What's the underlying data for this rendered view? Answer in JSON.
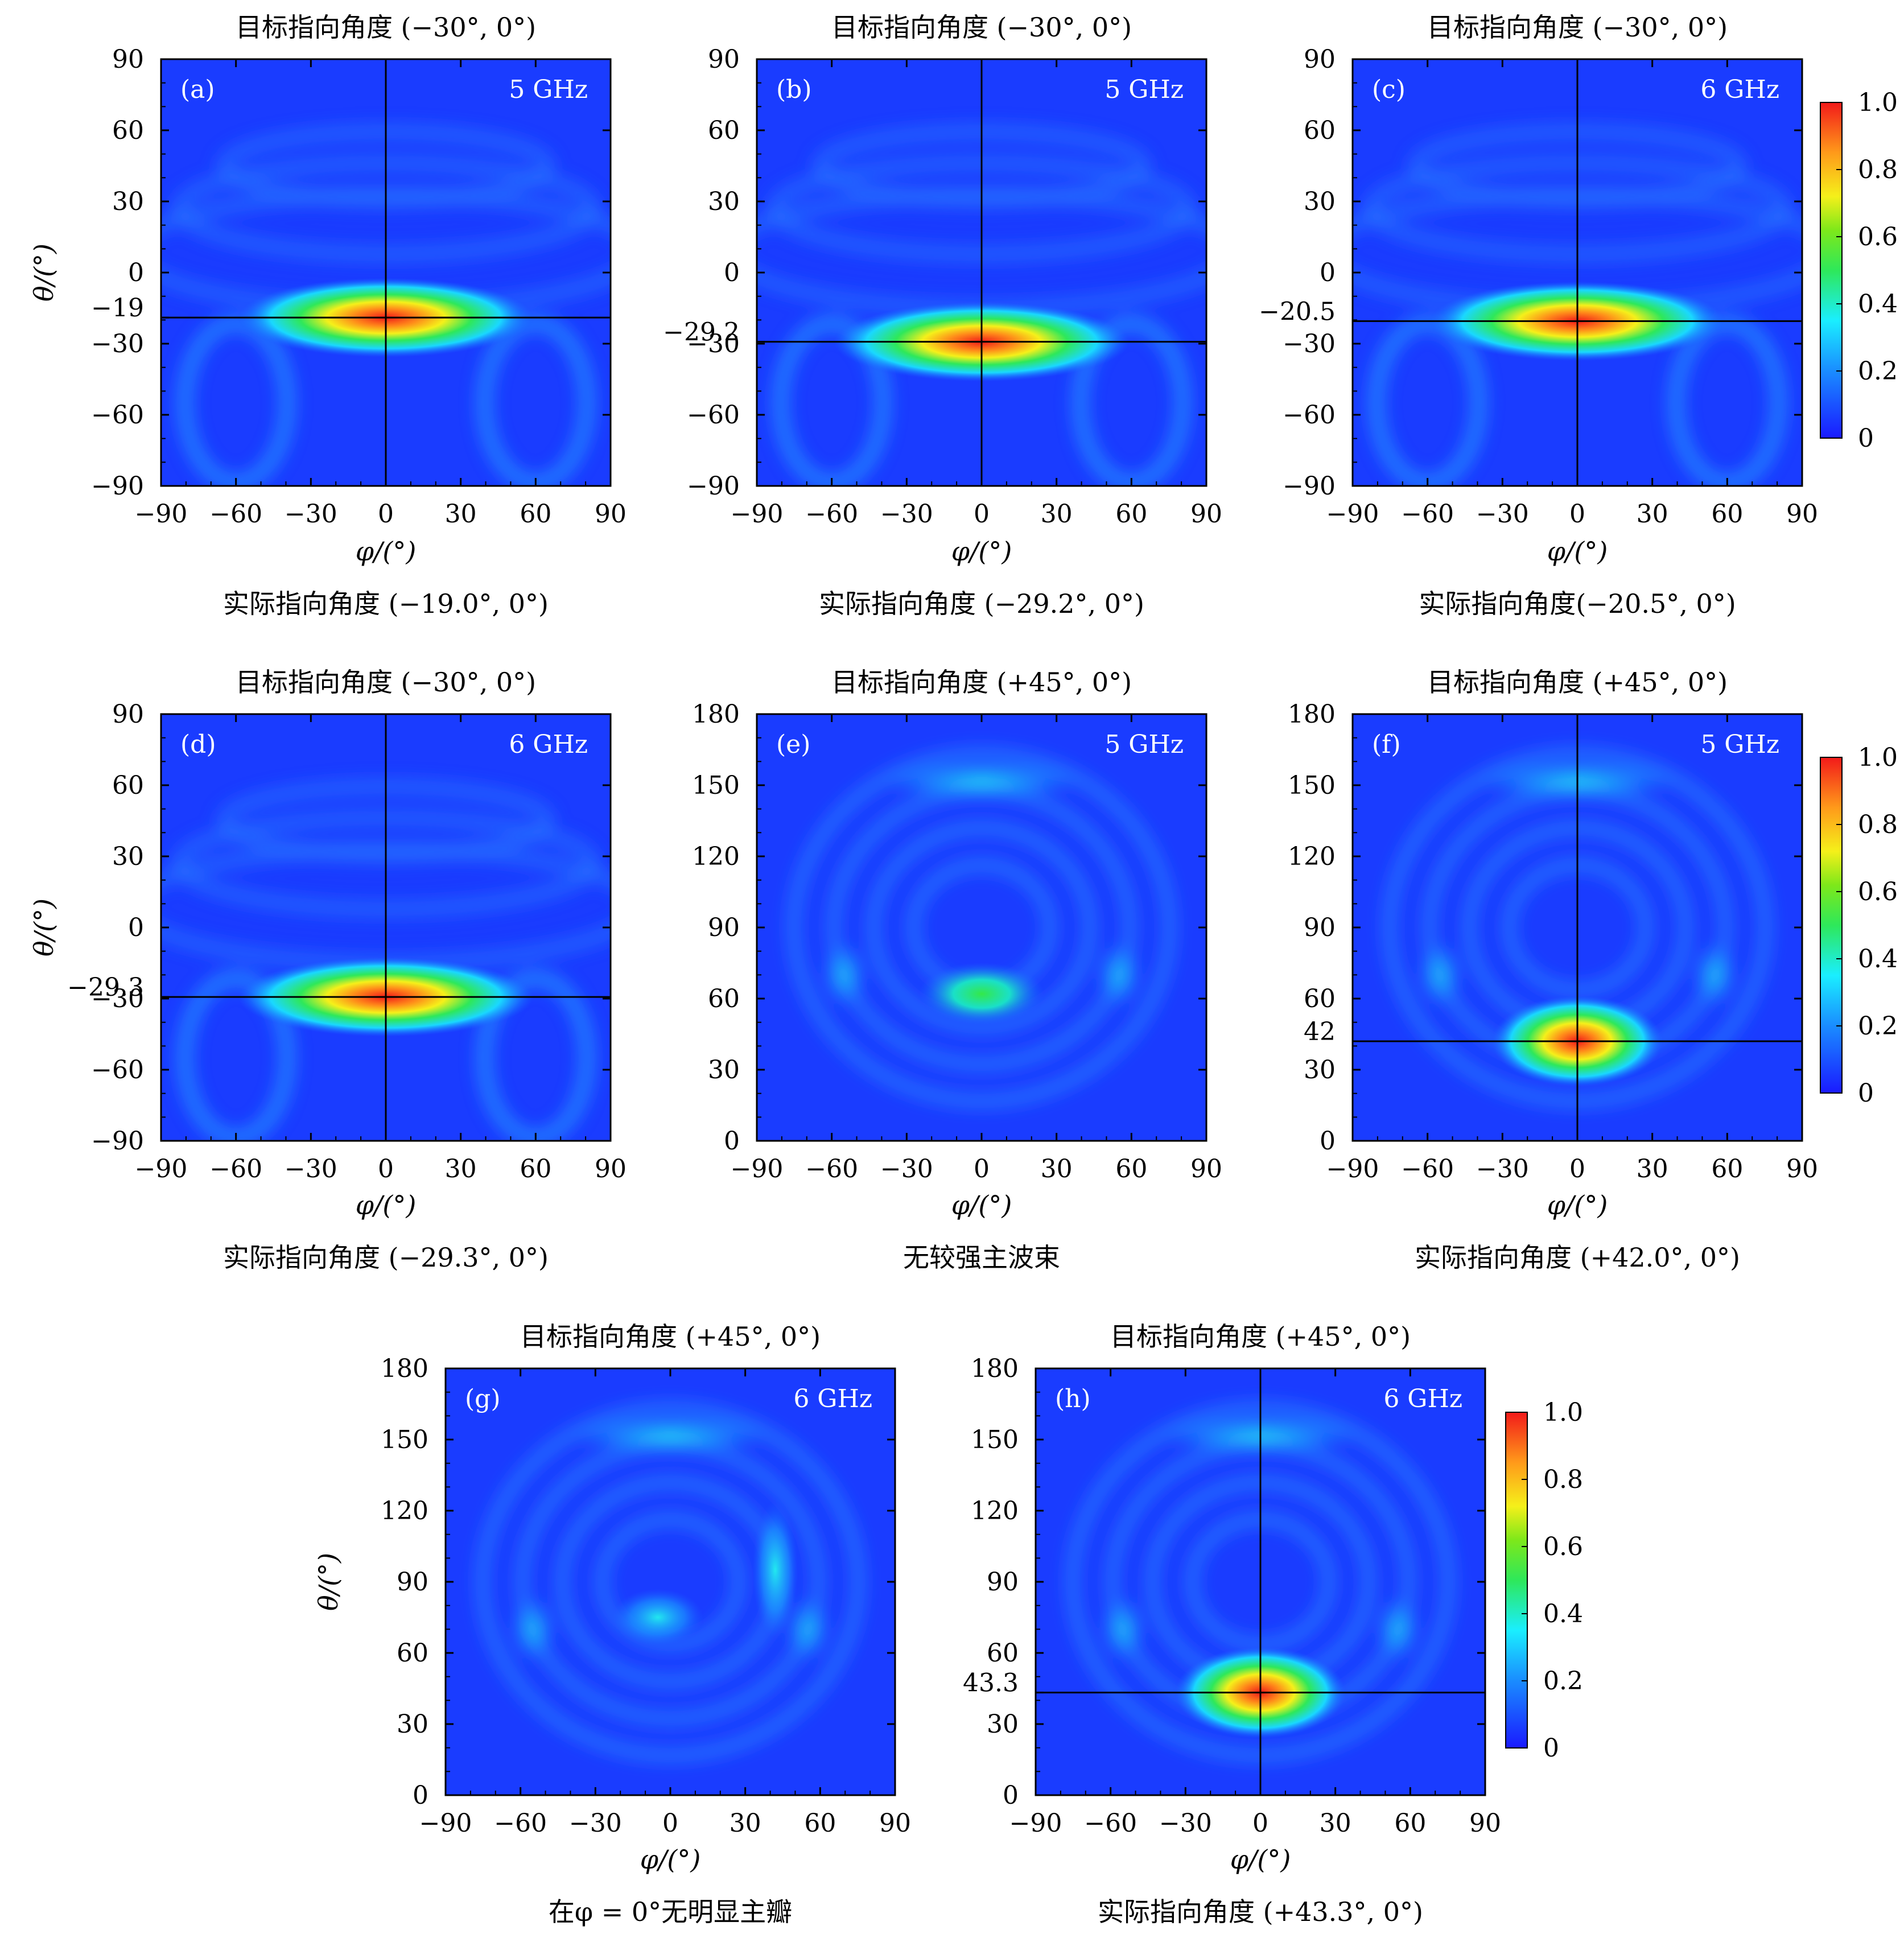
{
  "figure": {
    "colorbar": {
      "ticks": [
        "0",
        "0.2",
        "0.4",
        "0.6",
        "0.8",
        "1.0"
      ],
      "colormap": "jet",
      "range": [
        0,
        1
      ]
    },
    "x_ticks": [
      "−90",
      "−60",
      "−30",
      "0",
      "30",
      "60",
      "90"
    ],
    "y_ticks_a": [
      "90",
      "60",
      "30",
      "0",
      "−30",
      "−60",
      "−90"
    ],
    "y_ticks_b": [
      "180",
      "150",
      "120",
      "90",
      "60",
      "30",
      "0"
    ],
    "x_label": "φ/(°)",
    "y_label": "θ/(°)"
  },
  "chart_data": [
    {
      "type": "heatmap",
      "panel": "a",
      "label": "(a)",
      "freq": "5 GHz",
      "title": "目标指向角度 (−30°, 0°)",
      "caption": "实际指向角度 (−19.0°, 0°)",
      "xlim": [
        -90,
        90
      ],
      "ylim": [
        -90,
        90
      ],
      "peak": {
        "phi": 0,
        "theta": -19.0
      },
      "marker_label": "−19",
      "crosshair": true
    },
    {
      "type": "heatmap",
      "panel": "b",
      "label": "(b)",
      "freq": "5 GHz",
      "title": "目标指向角度 (−30°, 0°)",
      "caption": "实际指向角度 (−29.2°, 0°)",
      "xlim": [
        -90,
        90
      ],
      "ylim": [
        -90,
        90
      ],
      "peak": {
        "phi": 0,
        "theta": -29.2
      },
      "marker_label": "−29.2",
      "crosshair": true
    },
    {
      "type": "heatmap",
      "panel": "c",
      "label": "(c)",
      "freq": "6 GHz",
      "title": "目标指向角度 (−30°, 0°)",
      "caption": "实际指向角度(−20.5°, 0°)",
      "xlim": [
        -90,
        90
      ],
      "ylim": [
        -90,
        90
      ],
      "peak": {
        "phi": 0,
        "theta": -20.5
      },
      "marker_label": "−20.5",
      "crosshair": true
    },
    {
      "type": "heatmap",
      "panel": "d",
      "label": "(d)",
      "freq": "6 GHz",
      "title": "目标指向角度 (−30°, 0°)",
      "caption": "实际指向角度 (−29.3°, 0°)",
      "xlim": [
        -90,
        90
      ],
      "ylim": [
        -90,
        90
      ],
      "peak": {
        "phi": 0,
        "theta": -29.3
      },
      "marker_label": "−29.3",
      "crosshair": true
    },
    {
      "type": "heatmap",
      "panel": "e",
      "label": "(e)",
      "freq": "5 GHz",
      "title": "目标指向角度 (+45°, 0°)",
      "caption": "无较强主波束",
      "xlim": [
        -90,
        90
      ],
      "ylim": [
        0,
        180
      ],
      "peak": null,
      "crosshair": false
    },
    {
      "type": "heatmap",
      "panel": "f",
      "label": "(f)",
      "freq": "5 GHz",
      "title": "目标指向角度 (+45°, 0°)",
      "caption": "实际指向角度 (+42.0°, 0°)",
      "xlim": [
        -90,
        90
      ],
      "ylim": [
        0,
        180
      ],
      "peak": {
        "phi": 0,
        "theta": 42.0
      },
      "marker_label": "42",
      "crosshair": true
    },
    {
      "type": "heatmap",
      "panel": "g",
      "label": "(g)",
      "freq": "6 GHz",
      "title": "目标指向角度 (+45°, 0°)",
      "caption": "在φ = 0°无明显主瓣",
      "xlim": [
        -90,
        90
      ],
      "ylim": [
        0,
        180
      ],
      "peak": null,
      "crosshair": false
    },
    {
      "type": "heatmap",
      "panel": "h",
      "label": "(h)",
      "freq": "6 GHz",
      "title": "目标指向角度 (+45°, 0°)",
      "caption": "实际指向角度 (+43.3°, 0°)",
      "xlim": [
        -90,
        90
      ],
      "ylim": [
        0,
        180
      ],
      "peak": {
        "phi": 0,
        "theta": 43.3
      },
      "marker_label": "43.3",
      "crosshair": true
    }
  ]
}
